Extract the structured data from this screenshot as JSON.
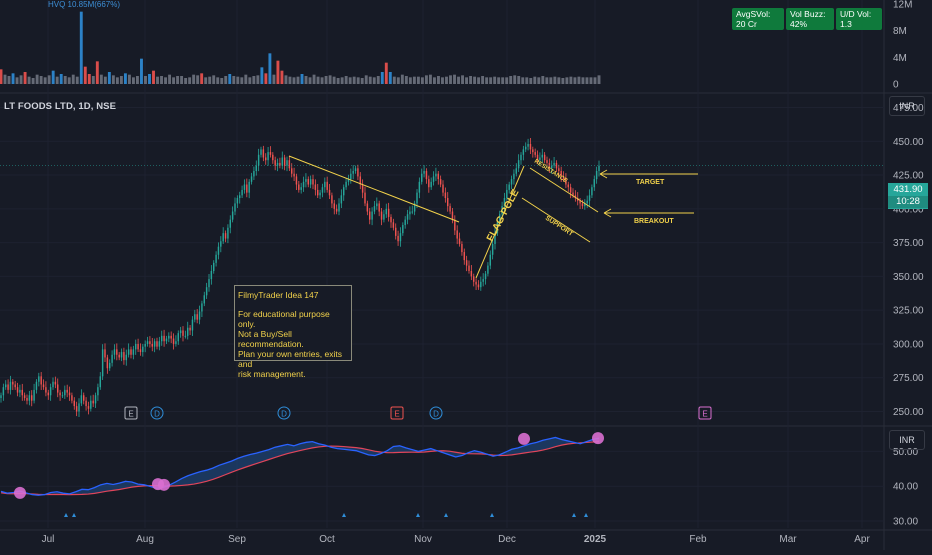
{
  "chart_data": [
    {
      "type": "bar",
      "name": "volume",
      "annotation": "HVQ 10.85M(667%)",
      "yticks": [
        "12M",
        "8M",
        "4M",
        "0"
      ],
      "values_millions": [
        2.2,
        1.4,
        1.2,
        1.6,
        1.0,
        1.3,
        1.8,
        1.1,
        0.9,
        1.4,
        1.2,
        1.0,
        1.3,
        2.0,
        1.1,
        1.5,
        1.2,
        1.0,
        1.4,
        1.1,
        10.85,
        2.6,
        1.5,
        1.2,
        3.4,
        1.4,
        1.1,
        1.8,
        1.3,
        1.0,
        1.2,
        1.6,
        1.4,
        1.0,
        1.2,
        3.8,
        1.2,
        1.5,
        2.0,
        1.1,
        1.2,
        1.0,
        1.4,
        1.0,
        1.2,
        1.2,
        0.9,
        1.0,
        1.4,
        1.3,
        1.6,
        1.0,
        1.1,
        1.3,
        1.0,
        0.9,
        1.2,
        1.5,
        1.2,
        1.1,
        1.0,
        1.4,
        1.0,
        1.2,
        1.3,
        2.5,
        1.6,
        4.6,
        1.4,
        3.5,
        2.0,
        1.3,
        1.1,
        1.0,
        1.1,
        1.5,
        1.2,
        1.0,
        1.4,
        1.1,
        1.0,
        1.2,
        1.3,
        1.1,
        0.9,
        1.0,
        1.2,
        1.0,
        1.1,
        1.0,
        0.9,
        1.3,
        1.1,
        1.0,
        1.2,
        1.8,
        3.2,
        1.8,
        1.1,
        1.0,
        1.4,
        1.2,
        1.0,
        1.1,
        1.1,
        1.0,
        1.3,
        1.4,
        1.0,
        1.2,
        1.0,
        1.1,
        1.3,
        1.4,
        1.1,
        1.3,
        1.0,
        1.2,
        1.1,
        1.0,
        1.2,
        1.0,
        1.0,
        1.1,
        1.0,
        1.0,
        1.0,
        1.2,
        1.3,
        1.2,
        1.0,
        1.0,
        0.9,
        1.1,
        1.0,
        1.2,
        1.0,
        1.0,
        1.1,
        1.0,
        0.9,
        1.0,
        1.1,
        1.0,
        1.1,
        1.0,
        1.0,
        1.0,
        1.0,
        1.3
      ]
    },
    {
      "type": "candlestick",
      "name": "price",
      "yticks": [
        475,
        450,
        425,
        400,
        375,
        350,
        325,
        300,
        275,
        250
      ],
      "ylim": [
        240,
        485
      ],
      "xticks": [
        "Jul",
        "Aug",
        "Sep",
        "Oct",
        "Nov",
        "Dec",
        "2025",
        "Feb",
        "Mar",
        "Apr"
      ],
      "last_price": "431.90",
      "countdown": "10:28",
      "close": [
        262,
        268,
        270,
        266,
        272,
        270,
        268,
        264,
        266,
        262,
        260,
        258,
        262,
        258,
        266,
        272,
        276,
        270,
        268,
        264,
        262,
        268,
        272,
        270,
        264,
        262,
        262,
        266,
        264,
        262,
        258,
        254,
        250,
        256,
        262,
        258,
        254,
        252,
        258,
        256,
        262,
        268,
        276,
        296,
        290,
        282,
        286,
        292,
        296,
        292,
        290,
        294,
        288,
        292,
        296,
        292,
        296,
        300,
        296,
        294,
        298,
        300,
        302,
        300,
        298,
        302,
        298,
        302,
        306,
        302,
        304,
        306,
        304,
        300,
        302,
        308,
        310,
        306,
        306,
        312,
        310,
        318,
        322,
        318,
        324,
        330,
        336,
        342,
        348,
        354,
        360,
        366,
        372,
        376,
        382,
        378,
        386,
        392,
        398,
        404,
        408,
        410,
        414,
        418,
        412,
        420,
        424,
        428,
        432,
        440,
        444,
        438,
        436,
        442,
        440,
        436,
        432,
        434,
        432,
        438,
        432,
        436,
        430,
        426,
        424,
        418,
        414,
        416,
        420,
        422,
        418,
        422,
        418,
        414,
        410,
        412,
        416,
        420,
        414,
        410,
        404,
        400,
        398,
        404,
        410,
        416,
        420,
        422,
        426,
        428,
        430,
        424,
        418,
        412,
        404,
        398,
        392,
        398,
        402,
        404,
        398,
        392,
        396,
        400,
        394,
        390,
        386,
        380,
        376,
        382,
        388,
        392,
        396,
        398,
        398,
        404,
        412,
        420,
        426,
        428,
        422,
        416,
        420,
        424,
        426,
        422,
        418,
        412,
        408,
        402,
        398,
        392,
        384,
        378,
        374,
        368,
        362,
        358,
        354,
        350,
        346,
        344,
        342,
        346,
        348,
        352,
        358,
        366,
        374,
        382,
        390,
        396,
        402,
        408,
        414,
        418,
        422,
        426,
        430,
        436,
        440,
        444,
        446,
        448,
        444,
        442,
        440,
        436,
        438,
        440,
        436,
        434,
        430,
        432,
        434,
        430,
        428,
        424,
        422,
        418,
        416,
        412,
        410,
        408,
        406,
        404,
        402,
        404,
        406,
        410,
        416,
        422,
        428,
        431.9
      ]
    },
    {
      "type": "line",
      "name": "indicator",
      "yticks": [
        50,
        40,
        30
      ],
      "ylim": [
        28,
        57
      ],
      "series": [
        {
          "values": [
            38.5,
            38.0,
            38.2,
            38.6,
            38.1,
            37.6,
            37.4,
            37.6,
            38.2,
            38.4,
            38.0,
            37.8,
            38.4,
            39.1,
            39.0,
            39.6,
            40.4,
            40.8,
            40.5,
            40.9,
            41.4,
            41.2,
            40.6,
            40.4,
            39.9,
            39.4,
            39.6,
            40.3,
            41.2,
            42.2,
            43.0,
            43.6,
            44.2,
            44.6,
            45.2,
            46.0,
            46.6,
            47.2,
            48.0,
            48.6,
            49.1,
            49.5,
            50.0,
            50.5,
            51.2,
            51.6,
            52.0,
            51.6,
            52.2,
            52.6,
            52.8,
            52.2,
            51.8,
            51.2,
            50.8,
            50.6,
            50.4,
            50.2,
            49.6,
            49.0,
            48.8,
            49.4,
            50.2,
            51.4,
            51.6,
            51.0,
            50.5,
            50.0,
            50.4,
            50.8,
            50.2,
            49.6,
            49.0,
            48.4,
            48.8,
            49.6,
            50.2,
            49.8,
            49.2,
            48.6,
            49.0,
            49.8,
            50.6,
            51.0,
            51.6,
            52.2,
            52.6,
            53.2,
            53.6,
            54.0,
            53.4,
            53.0,
            52.6,
            52.2,
            52.8,
            53.4,
            53.8
          ]
        }
      ]
    }
  ],
  "header": {
    "symbol": "LT FOODS LTD, 1D, NSE",
    "hvq": "HVQ 10.85M(667%)",
    "badges": [
      "AvgSVol: 20 Cr",
      "Vol Buzz: 42%",
      "U/D Vol: 1.3"
    ]
  },
  "currency_main": "INR",
  "currency_indicator": "INR",
  "price_tag": {
    "price": "431.90",
    "time": "10:28"
  },
  "idea_box": {
    "title": "FilmyTrader Idea 147",
    "lines": [
      "For educational purpose only.",
      "Not a Buy/Sell recommendation.",
      "Plan your own entries, exits and",
      "risk management."
    ]
  },
  "annotations": {
    "resistance": "RESISTANCE",
    "support": "SUPPORT",
    "flag_pole": "FLAG POLE",
    "target": "TARGET",
    "breakout": "BREAKOUT"
  },
  "events": [
    "E",
    "D",
    "D",
    "E",
    "D",
    "E"
  ],
  "colors": {
    "up": "#26a69a",
    "down": "#ef5350",
    "volume_up": "#2f8ed9",
    "volume_down": "#ef5350",
    "volume_neutral": "#6e7380",
    "trendline": "#f2d24b",
    "indicator_line": "#2962ff",
    "indicator_ma": "#e0455a",
    "indicator_fill": "#1f4e8c",
    "highlight": "#d96fd0"
  }
}
